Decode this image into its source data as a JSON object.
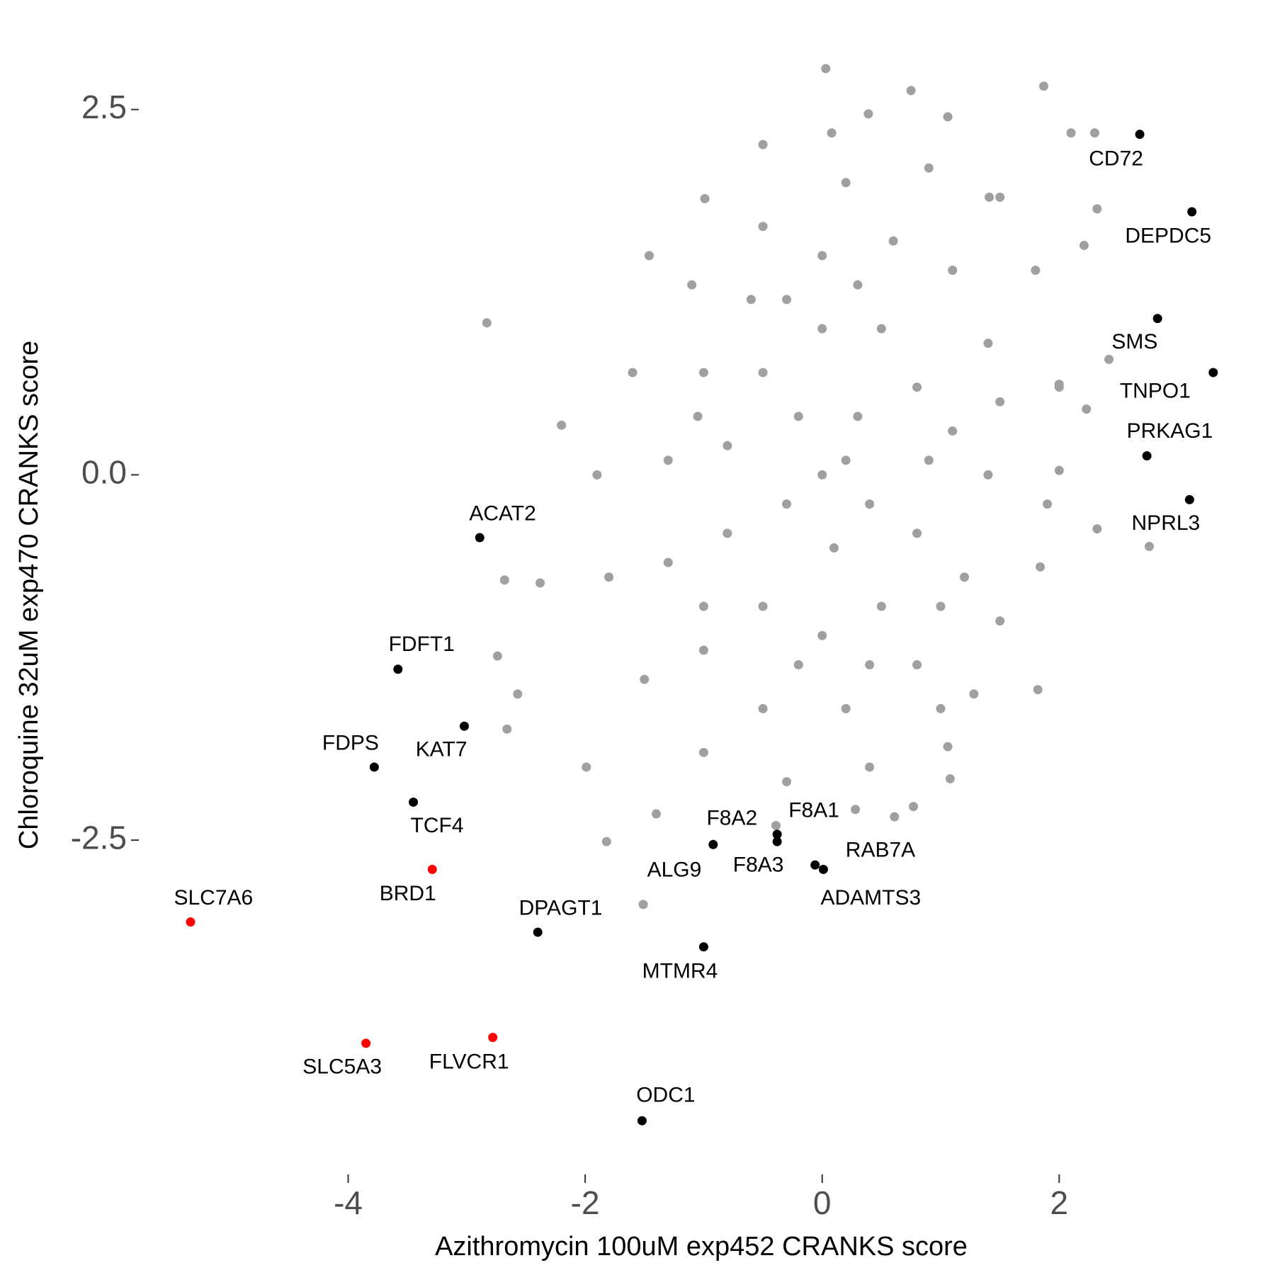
{
  "chart_data": {
    "type": "scatter",
    "x_label": "Azithromycin 100uM exp452 CRANKS score",
    "y_label": "Chloroquine 32uM exp470 CRANKS score",
    "xlim": [
      -5.5,
      3.45
    ],
    "ylim": [
      -4.5,
      2.85
    ],
    "xticks": [
      -4,
      -2,
      0,
      2
    ],
    "yticks": [
      -2.5,
      {
        "value": 0,
        "label": "0.0"
      },
      2.5
    ],
    "series": [
      {
        "color": "#a0a0a0",
        "x": [
          0.03,
          0.75,
          1.87,
          2.1,
          2.3,
          2.32,
          -0.5,
          0.08,
          -0.99,
          -2.83,
          -1.46,
          -2.2,
          -2.68,
          -2.74,
          -2.66,
          -2.57,
          -2.38,
          -1.99,
          -1.82,
          -1.4,
          0.28,
          0.77,
          1.08,
          1.82,
          2.32,
          2.76,
          2.23,
          2.21,
          1.28,
          1.84,
          2.0,
          2.42,
          2.0,
          1.06,
          -0.39,
          0.61,
          1.41,
          0.39,
          1.06,
          1.8,
          1.5,
          0.9,
          0.2,
          -0.5,
          -1.1,
          -1.6,
          -1.9,
          -1.8,
          -1.5,
          -1.0,
          -0.3,
          0.4,
          1.0,
          1.5,
          1.9,
          2.0,
          1.4,
          1.1,
          0.6,
          0,
          -0.6,
          -1.0,
          -1.3,
          -1.3,
          -1.0,
          -0.5,
          0.2,
          0.8,
          1.2,
          1.4,
          1.5,
          0.8,
          0.5,
          0,
          -0.5,
          -0.8,
          -0.8,
          -0.5,
          0,
          0.5,
          0.8,
          0.9,
          0.3,
          -0.2,
          -0.3,
          0.1,
          0.4,
          0,
          0.2,
          1.1,
          1.0,
          -1.0,
          -1.05,
          0.3,
          -0.3,
          0.4,
          -0.2
        ],
        "y": [
          2.78,
          2.63,
          2.66,
          2.34,
          2.34,
          1.82,
          2.26,
          2.34,
          1.89,
          1.04,
          1.5,
          0.34,
          -0.72,
          -1.24,
          -1.74,
          -1.5,
          -0.74,
          -2.0,
          -2.51,
          -2.32,
          -2.29,
          -2.27,
          -2.08,
          -1.47,
          -0.37,
          -0.49,
          0.45,
          1.57,
          -1.5,
          -0.63,
          0.03,
          0.79,
          0.62,
          -1.86,
          -2.4,
          -2.34,
          1.9,
          2.47,
          2.45,
          1.4,
          1.9,
          2.1,
          2.0,
          1.7,
          1.3,
          0.7,
          0,
          -0.7,
          -1.4,
          -1.9,
          -2.1,
          -2.0,
          -1.6,
          -1.0,
          -0.2,
          0.6,
          0.9,
          1.4,
          1.6,
          1.5,
          1.2,
          0.7,
          0.1,
          -0.6,
          -1.2,
          -1.6,
          -1.6,
          -1.3,
          -0.7,
          0,
          0.5,
          0.6,
          1.0,
          1.0,
          0.7,
          0.2,
          -0.4,
          -0.9,
          -1.1,
          -0.9,
          -0.4,
          0.1,
          0.4,
          0.4,
          -0.2,
          -0.5,
          -0.2,
          0,
          0.1,
          0.3,
          -0.9,
          -0.9,
          0.4,
          1.3,
          1.2,
          -1.3,
          -1.3
        ]
      },
      {
        "color": "#a0a0a0",
        "labels": [
          "ALG9"
        ],
        "x": [
          -1.51
        ],
        "y": [
          -2.94
        ]
      },
      {
        "color": "#000000",
        "labels": [
          "CD72",
          "DEPDC5",
          "SMS",
          "TNPO1",
          "PRKAG1",
          "NPRL3",
          "ACAT2",
          "FDFT1",
          "KAT7",
          "FDPS",
          "TCF4",
          "DPAGT1",
          "MTMR4",
          "ODC1",
          "F8A2",
          "F8A1",
          "F8A3",
          "RAB7A",
          "ADAMTS3"
        ],
        "x": [
          2.68,
          3.12,
          2.83,
          3.3,
          2.74,
          3.1,
          -2.89,
          -3.58,
          -3.02,
          -3.78,
          -3.45,
          -2.4,
          -1.0,
          -1.52,
          -0.92,
          -0.38,
          -0.38,
          -0.06,
          0.01
        ],
        "y": [
          2.33,
          1.8,
          1.07,
          0.7,
          0.13,
          -0.17,
          -0.43,
          -1.33,
          -1.72,
          -2.0,
          -2.24,
          -3.13,
          -3.23,
          -4.42,
          -2.53,
          -2.46,
          -2.51,
          -2.67,
          -2.7
        ]
      },
      {
        "color": "#ff0000",
        "labels": [
          "BRD1",
          "SLC7A6",
          "SLC5A3",
          "FLVCR1"
        ],
        "x": [
          -3.29,
          -5.33,
          -3.85,
          -2.78
        ],
        "y": [
          -2.7,
          -3.06,
          -3.89,
          -3.85
        ]
      }
    ]
  }
}
